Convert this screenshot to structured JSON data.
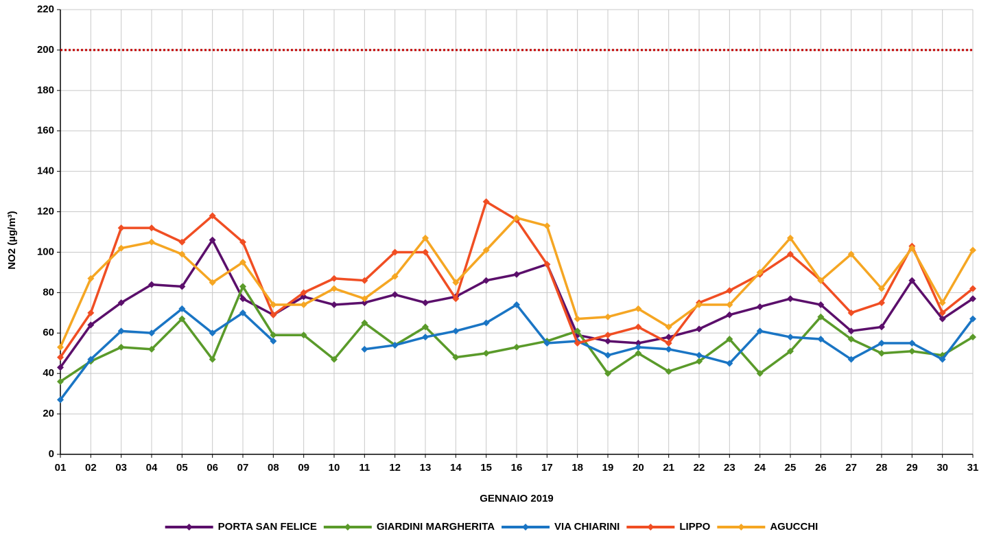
{
  "chart_data": {
    "type": "line",
    "x_label": "GENNAIO 2019",
    "y_label": "NO2 (µg/m³)",
    "categories": [
      "01",
      "02",
      "03",
      "04",
      "05",
      "06",
      "07",
      "08",
      "09",
      "10",
      "11",
      "12",
      "13",
      "14",
      "15",
      "16",
      "17",
      "18",
      "19",
      "20",
      "21",
      "22",
      "23",
      "24",
      "25",
      "26",
      "27",
      "28",
      "29",
      "30",
      "31"
    ],
    "series": [
      {
        "name": "PORTA SAN FELICE",
        "color": "#5b0f6b",
        "values": [
          43,
          64,
          75,
          84,
          83,
          106,
          77,
          69,
          78,
          74,
          75,
          79,
          75,
          78,
          86,
          89,
          94,
          59,
          56,
          55,
          58,
          62,
          69,
          73,
          77,
          74,
          61,
          63,
          86,
          67,
          77
        ]
      },
      {
        "name": "GIARDINI MARGHERITA",
        "color": "#5a9a2a",
        "values": [
          36,
          46,
          53,
          52,
          67,
          47,
          83,
          59,
          59,
          47,
          65,
          54,
          63,
          48,
          50,
          53,
          56,
          61,
          40,
          50,
          41,
          46,
          57,
          40,
          51,
          68,
          57,
          50,
          51,
          49,
          58
        ]
      },
      {
        "name": "VIA CHIARINI",
        "color": "#1a75c4",
        "values": [
          27,
          47,
          61,
          60,
          72,
          60,
          70,
          56,
          null,
          null,
          52,
          54,
          58,
          61,
          65,
          74,
          55,
          56,
          49,
          53,
          52,
          49,
          45,
          61,
          58,
          57,
          47,
          55,
          55,
          47,
          67
        ]
      },
      {
        "name": "LIPPO",
        "color": "#f04e23",
        "values": [
          48,
          70,
          112,
          112,
          105,
          118,
          105,
          69,
          80,
          87,
          86,
          100,
          100,
          77,
          125,
          116,
          94,
          55,
          59,
          63,
          55,
          75,
          81,
          89,
          99,
          86,
          70,
          75,
          103,
          70,
          82
        ]
      },
      {
        "name": "AGUCCHI",
        "color": "#f5a623",
        "values": [
          53,
          87,
          102,
          105,
          99,
          85,
          95,
          74,
          74,
          82,
          77,
          88,
          107,
          85,
          101,
          117,
          113,
          67,
          68,
          72,
          63,
          74,
          74,
          90,
          107,
          86,
          99,
          82,
          102,
          75,
          101
        ]
      }
    ],
    "ylim": [
      0,
      220
    ],
    "yticks": [
      0,
      20,
      40,
      60,
      80,
      100,
      120,
      140,
      160,
      180,
      200,
      220
    ],
    "grid": true,
    "reference_line": {
      "value": 200,
      "color": "#c00000"
    },
    "legend": "bottom"
  }
}
